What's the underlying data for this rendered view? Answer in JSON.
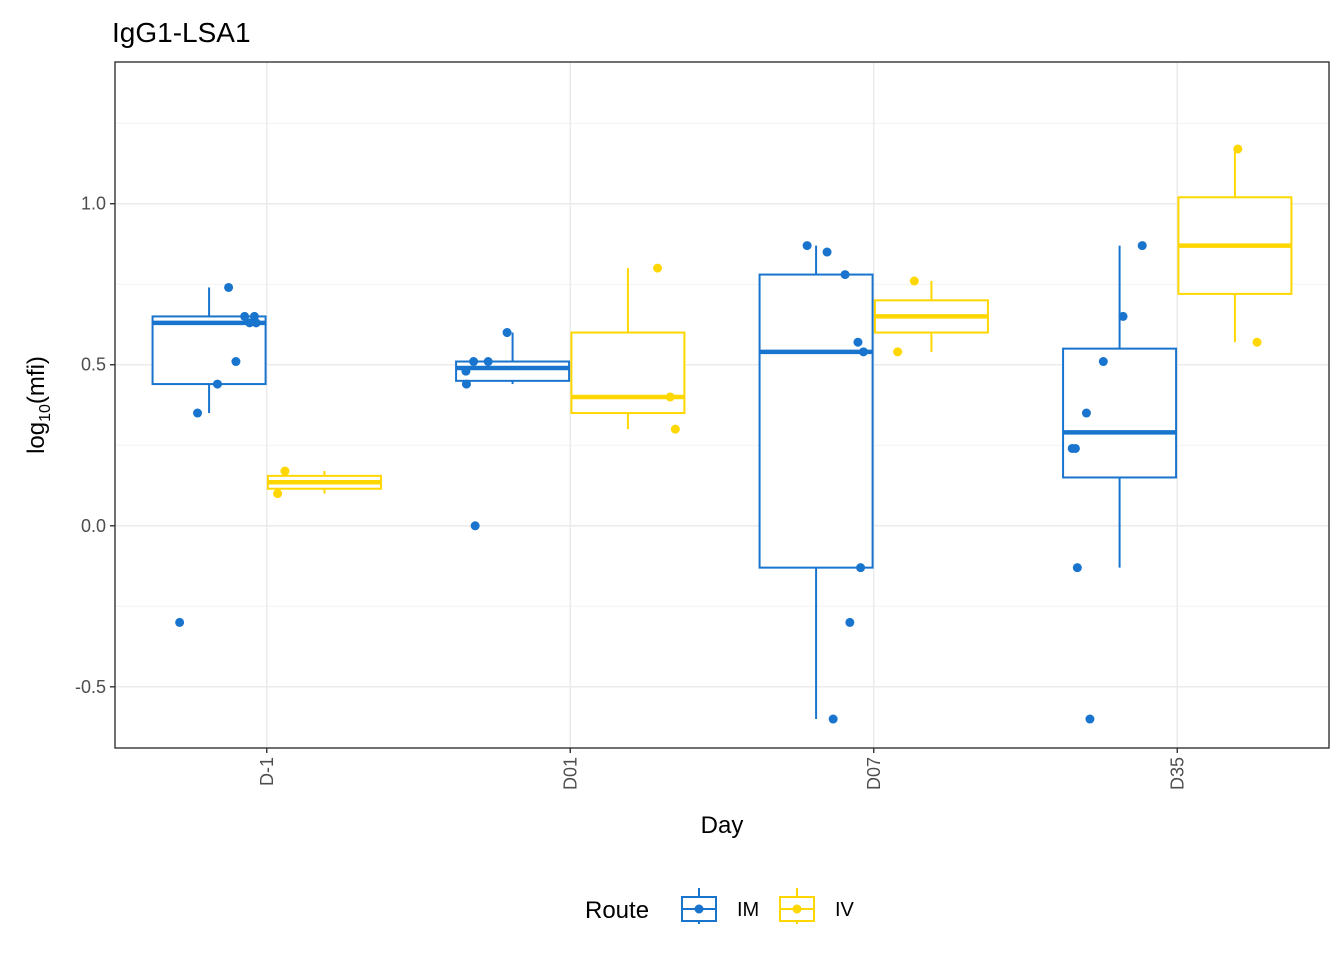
{
  "chart_data": {
    "type": "box",
    "title": "IgG1-LSA1",
    "xlabel": "Day",
    "ylabel_main": "log",
    "ylabel_sub": "10",
    "ylabel_rest": "(mfi)",
    "ylim": [
      -0.69,
      1.44
    ],
    "yticks": [
      -0.5,
      0.0,
      0.5,
      1.0
    ],
    "ytick_labels": [
      "-0.5",
      "0.0",
      "0.5",
      "1.0"
    ],
    "categories": [
      "D-1",
      "D01",
      "D07",
      "D35"
    ],
    "grid": true,
    "legend": {
      "title": "Route",
      "position": "bottom",
      "entries": [
        "IM",
        "IV"
      ]
    },
    "series": [
      {
        "name": "IM",
        "color": "#1874CD",
        "boxes": [
          {
            "category": "D-1",
            "q1": 0.44,
            "median": 0.63,
            "q3": 0.65,
            "whisker_low": 0.35,
            "whisker_high": 0.74
          },
          {
            "category": "D01",
            "q1": 0.45,
            "median": 0.49,
            "q3": 0.51,
            "whisker_low": 0.44,
            "whisker_high": 0.6
          },
          {
            "category": "D07",
            "q1": -0.13,
            "median": 0.54,
            "q3": 0.78,
            "whisker_low": -0.6,
            "whisker_high": 0.87
          },
          {
            "category": "D35",
            "q1": 0.15,
            "median": 0.29,
            "q3": 0.55,
            "whisker_low": -0.13,
            "whisker_high": 0.87
          }
        ],
        "points": [
          {
            "category": "D-1",
            "y": 0.74
          },
          {
            "category": "D-1",
            "y": 0.65
          },
          {
            "category": "D-1",
            "y": 0.65
          },
          {
            "category": "D-1",
            "y": 0.63
          },
          {
            "category": "D-1",
            "y": 0.63
          },
          {
            "category": "D-1",
            "y": 0.51
          },
          {
            "category": "D-1",
            "y": 0.44
          },
          {
            "category": "D-1",
            "y": 0.35
          },
          {
            "category": "D-1",
            "y": -0.3
          },
          {
            "category": "D01",
            "y": 0.6
          },
          {
            "category": "D01",
            "y": 0.51
          },
          {
            "category": "D01",
            "y": 0.51
          },
          {
            "category": "D01",
            "y": 0.48
          },
          {
            "category": "D01",
            "y": 0.44
          },
          {
            "category": "D01",
            "y": 0.0
          },
          {
            "category": "D07",
            "y": 0.87
          },
          {
            "category": "D07",
            "y": 0.85
          },
          {
            "category": "D07",
            "y": 0.78
          },
          {
            "category": "D07",
            "y": 0.57
          },
          {
            "category": "D07",
            "y": 0.54
          },
          {
            "category": "D07",
            "y": -0.13
          },
          {
            "category": "D07",
            "y": -0.3
          },
          {
            "category": "D07",
            "y": -0.6
          },
          {
            "category": "D35",
            "y": 0.87
          },
          {
            "category": "D35",
            "y": 0.65
          },
          {
            "category": "D35",
            "y": 0.51
          },
          {
            "category": "D35",
            "y": 0.35
          },
          {
            "category": "D35",
            "y": 0.24
          },
          {
            "category": "D35",
            "y": 0.24
          },
          {
            "category": "D35",
            "y": -0.13
          },
          {
            "category": "D35",
            "y": -0.6
          }
        ]
      },
      {
        "name": "IV",
        "color": "#FFD700",
        "boxes": [
          {
            "category": "D-1",
            "q1": 0.115,
            "median": 0.135,
            "q3": 0.155,
            "whisker_low": 0.1,
            "whisker_high": 0.17
          },
          {
            "category": "D01",
            "q1": 0.35,
            "median": 0.4,
            "q3": 0.6,
            "whisker_low": 0.3,
            "whisker_high": 0.8
          },
          {
            "category": "D07",
            "q1": 0.6,
            "median": 0.65,
            "q3": 0.7,
            "whisker_low": 0.54,
            "whisker_high": 0.76
          },
          {
            "category": "D35",
            "q1": 0.72,
            "median": 0.87,
            "q3": 1.02,
            "whisker_low": 0.57,
            "whisker_high": 1.17
          }
        ],
        "points": [
          {
            "category": "D-1",
            "y": 0.17
          },
          {
            "category": "D-1",
            "y": 0.1
          },
          {
            "category": "D01",
            "y": 0.8
          },
          {
            "category": "D01",
            "y": 0.4
          },
          {
            "category": "D01",
            "y": 0.3
          },
          {
            "category": "D07",
            "y": 0.76
          },
          {
            "category": "D07",
            "y": 0.54
          },
          {
            "category": "D35",
            "y": 1.17
          },
          {
            "category": "D35",
            "y": 0.57
          }
        ]
      }
    ]
  }
}
